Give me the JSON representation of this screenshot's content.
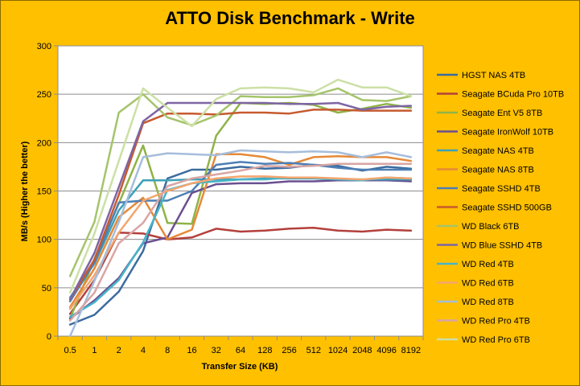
{
  "chart_data": {
    "type": "line",
    "title": "ATTO Disk Benchmark - Write",
    "xlabel": "Transfer Size (KB)",
    "ylabel": "MB/s (Higher the better)",
    "ylim": [
      0,
      300
    ],
    "yticks": [
      0,
      50,
      100,
      150,
      200,
      250,
      300
    ],
    "categories": [
      "0.5",
      "1",
      "2",
      "4",
      "8",
      "16",
      "32",
      "64",
      "128",
      "256",
      "512",
      "1024",
      "2048",
      "4096",
      "8192"
    ],
    "grid": true,
    "legend_position": "right",
    "series": [
      {
        "name": "HGST NAS 4TB",
        "color": "#3C6B9E",
        "values": [
          12,
          22,
          46,
          88,
          163,
          172,
          172,
          175,
          173,
          174,
          177,
          176,
          171,
          175,
          173
        ]
      },
      {
        "name": "Seagate BCuda Pro 10TB",
        "color": "#B3403C",
        "values": [
          23,
          58,
          107,
          106,
          100,
          102,
          111,
          108,
          109,
          111,
          112,
          109,
          108,
          110,
          109
        ]
      },
      {
        "name": "Seagate Ent V5 8TB",
        "color": "#8FB347",
        "values": [
          18,
          80,
          137,
          197,
          117,
          116,
          207,
          241,
          240,
          241,
          239,
          231,
          235,
          240,
          236
        ]
      },
      {
        "name": "Seagate IronWolf 10TB",
        "color": "#6B4F91",
        "values": [
          18,
          37,
          60,
          96,
          102,
          148,
          157,
          158,
          158,
          160,
          160,
          161,
          161,
          161,
          160
        ]
      },
      {
        "name": "Seagate NAS 4TB",
        "color": "#3EA0B6",
        "values": [
          40,
          75,
          130,
          161,
          161,
          162,
          162,
          162,
          163,
          163,
          163,
          162,
          162,
          162,
          162
        ]
      },
      {
        "name": "Seagate NAS 8TB",
        "color": "#E58A38",
        "values": [
          30,
          70,
          123,
          143,
          100,
          110,
          188,
          188,
          185,
          177,
          185,
          186,
          185,
          185,
          181
        ]
      },
      {
        "name": "Seagate SSHD 4TB",
        "color": "#4D7FB5",
        "values": [
          36,
          76,
          138,
          140,
          140,
          150,
          177,
          180,
          178,
          179,
          177,
          174,
          172,
          172,
          172
        ]
      },
      {
        "name": "Seagate SSHD 500GB",
        "color": "#C65A2F",
        "values": [
          38,
          79,
          146,
          220,
          230,
          230,
          229,
          231,
          231,
          230,
          234,
          234,
          233,
          233,
          233
        ]
      },
      {
        "name": "WD Black 6TB",
        "color": "#A5C46B",
        "values": [
          62,
          118,
          231,
          250,
          226,
          218,
          228,
          248,
          247,
          247,
          249,
          256,
          244,
          243,
          248
        ]
      },
      {
        "name": "WD Blue SSHD 4TB",
        "color": "#7E65A3",
        "values": [
          38,
          86,
          154,
          222,
          241,
          241,
          241,
          241,
          241,
          240,
          240,
          241,
          234,
          237,
          238
        ]
      },
      {
        "name": "WD Red 4TB",
        "color": "#48B3C8",
        "values": [
          20,
          35,
          58,
          97,
          151,
          158,
          160,
          162,
          162,
          164,
          164,
          162,
          161,
          164,
          163
        ]
      },
      {
        "name": "WD Red 6TB",
        "color": "#F4A56E",
        "values": [
          28,
          63,
          107,
          140,
          150,
          158,
          163,
          165,
          165,
          164,
          164,
          163,
          162,
          164,
          163
        ]
      },
      {
        "name": "WD Red 8TB",
        "color": "#A6BDDB",
        "values": [
          0,
          57,
          118,
          185,
          189,
          188,
          187,
          192,
          191,
          190,
          191,
          190,
          185,
          190,
          185
        ]
      },
      {
        "name": "WD Red Pro 4TB",
        "color": "#D9A5A3",
        "values": [
          16,
          45,
          96,
          117,
          155,
          163,
          167,
          171,
          176,
          175,
          176,
          178,
          178,
          178,
          178
        ]
      },
      {
        "name": "WD Red Pro 6TB",
        "color": "#CCE0A5",
        "values": [
          45,
          106,
          181,
          256,
          236,
          217,
          245,
          256,
          257,
          256,
          252,
          265,
          257,
          257,
          248
        ]
      }
    ]
  }
}
